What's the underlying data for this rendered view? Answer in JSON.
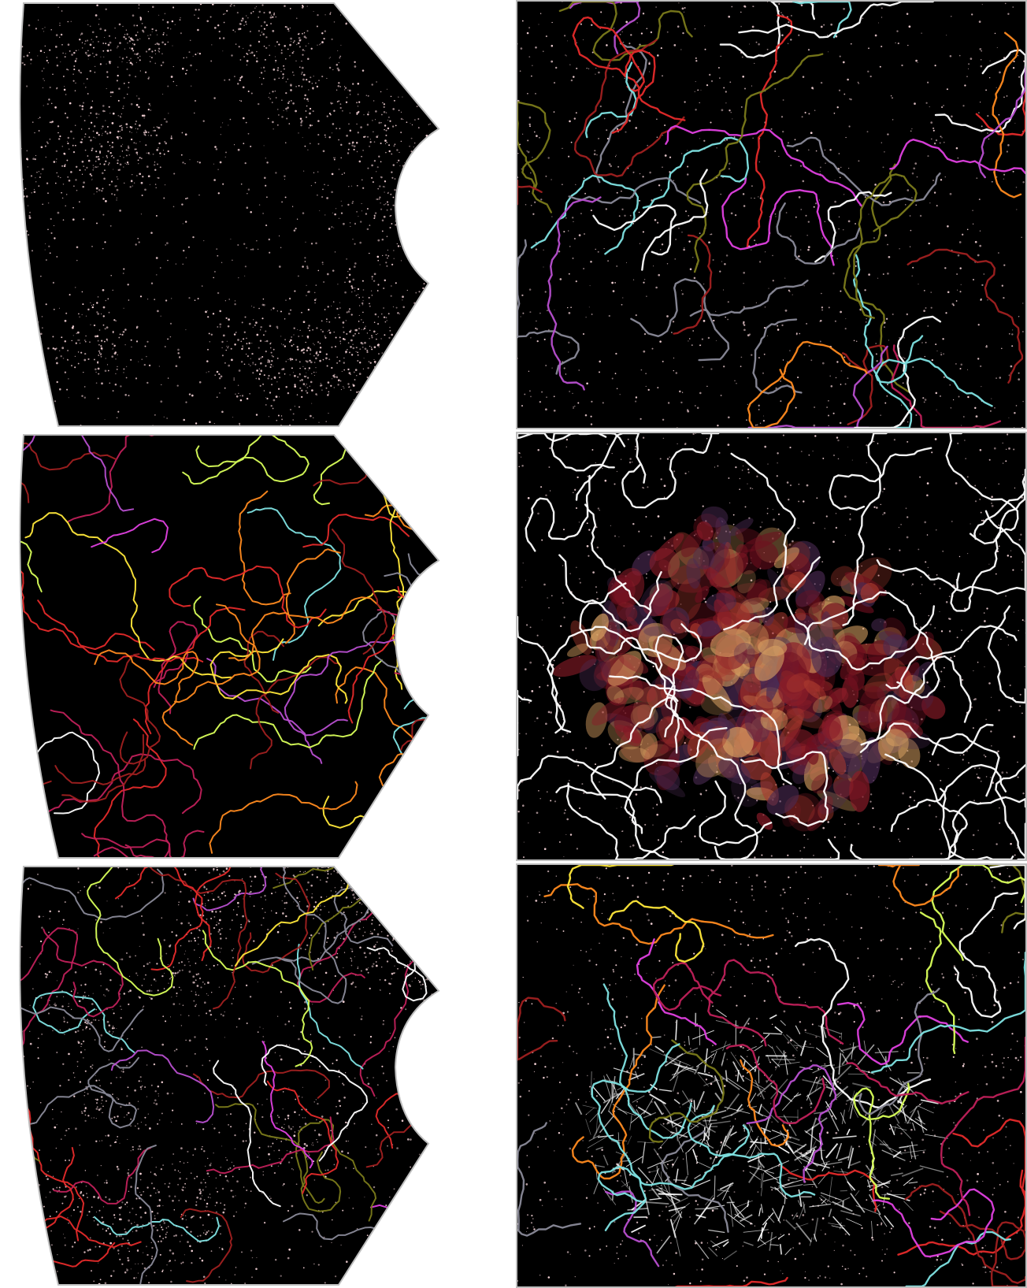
{
  "figure": {
    "panels": [
      {
        "id": "p-lt",
        "name": "survey-wedge-galaxies",
        "shape": "wedge",
        "galaxies": 2600,
        "filaments": 0,
        "cloud": "none"
      },
      {
        "id": "p-lm",
        "name": "survey-wedge-filaments",
        "shape": "wedge",
        "galaxies": 0,
        "filaments": 60,
        "cloud": "none"
      },
      {
        "id": "p-lb",
        "name": "survey-wedge-overlay",
        "shape": "wedge",
        "galaxies": 2200,
        "filaments": 45,
        "cloud": "none"
      },
      {
        "id": "p-rt",
        "name": "zoom-filaments-colored",
        "shape": "rect",
        "galaxies": 1000,
        "filaments": 45,
        "cloud": "none"
      },
      {
        "id": "p-rm",
        "name": "zoom-density-structure",
        "shape": "rect",
        "galaxies": 900,
        "filaments": 40,
        "cloud": "red"
      },
      {
        "id": "p-rb",
        "name": "zoom-web-structure",
        "shape": "rect",
        "galaxies": 900,
        "filaments": 40,
        "cloud": "white"
      }
    ],
    "colors": {
      "background": "#000000",
      "galaxy": "#f4d2d6",
      "frame": "#bdbdbd",
      "filament_palette": [
        "#e040e0",
        "#c0205a",
        "#ffe83a",
        "#ff8a1f",
        "#7a7a1a",
        "#ffffff",
        "#8a8a99",
        "#e52a2a",
        "#7fe3e3",
        "#b84fd0",
        "#d9ff5a",
        "#a02020"
      ],
      "cloud_red": [
        "#6e0f1e",
        "#8a1c28",
        "#a83a2e",
        "#d8a062",
        "#4a2a52"
      ],
      "cloud_white": "#ffffff"
    }
  }
}
